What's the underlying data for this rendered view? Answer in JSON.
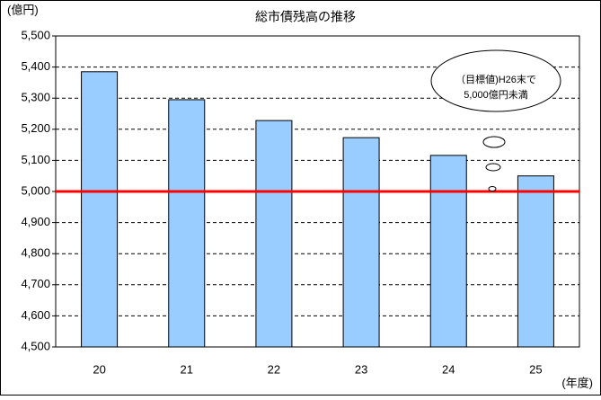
{
  "chart_data": {
    "type": "bar",
    "title": "総市債残高の推移",
    "y_label": "(億円)",
    "x_label": "(年度)",
    "categories": [
      "20",
      "21",
      "22",
      "23",
      "24",
      "25"
    ],
    "values": [
      5385,
      5295,
      5228,
      5173,
      5116,
      5050
    ],
    "color": "#99ccff",
    "ylim": [
      4500,
      5500
    ],
    "yticks": [
      {
        "value": 4500,
        "label": "4,500"
      },
      {
        "value": 4600,
        "label": "4,600"
      },
      {
        "value": 4700,
        "label": "4,700"
      },
      {
        "value": 4800,
        "label": "4,800"
      },
      {
        "value": 4900,
        "label": "4,900"
      },
      {
        "value": 5000,
        "label": "5,000"
      },
      {
        "value": 5100,
        "label": "5,100"
      },
      {
        "value": 5200,
        "label": "5,200"
      },
      {
        "value": 5300,
        "label": "5,300"
      },
      {
        "value": 5400,
        "label": "5,400"
      },
      {
        "value": 5500,
        "label": "5,500"
      }
    ],
    "grid": true,
    "reference_line": {
      "value": 5000,
      "color": "#ff0000"
    },
    "annotation": [
      "（目標値)H26末で",
      "5,000億円未満"
    ]
  }
}
